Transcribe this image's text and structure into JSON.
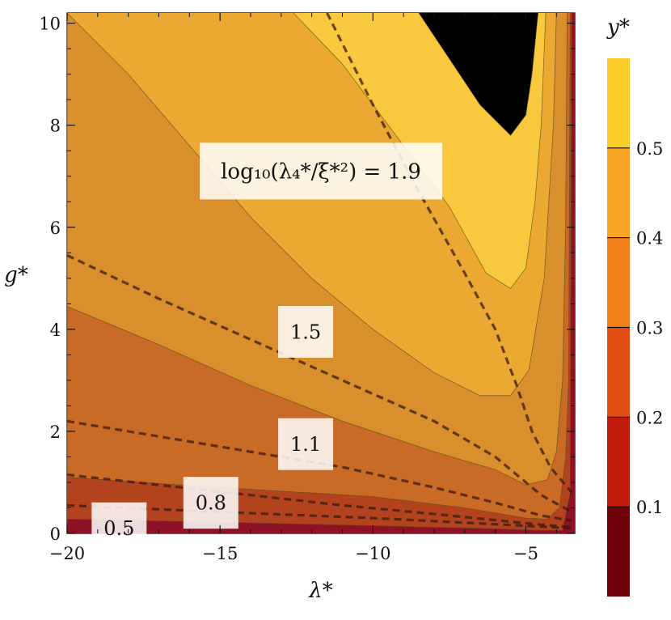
{
  "chart_data": {
    "type": "contour",
    "xlabel": "λ*",
    "ylabel": "g*",
    "xlim": [
      -20,
      -3.4
    ],
    "ylim": [
      0,
      10.2
    ],
    "x_ticks": [
      -20,
      -15,
      -10,
      -5
    ],
    "x_tick_labels": [
      "−20",
      "−15",
      "−10",
      "−5"
    ],
    "y_ticks": [
      0,
      2,
      4,
      6,
      8,
      10
    ],
    "y_tick_labels": [
      "0",
      "2",
      "4",
      "6",
      "8",
      "10"
    ],
    "grid": false,
    "colorbar": {
      "title": "y*",
      "levels": [
        0.1,
        0.2,
        0.3,
        0.4,
        0.5
      ],
      "tick_labels": [
        "0.1",
        "0.2",
        "0.3",
        "0.4",
        "0.5"
      ],
      "colors": [
        "#6e0008",
        "#c01a0a",
        "#e24e12",
        "#f2801a",
        "#f9a523",
        "#fbcd29"
      ]
    },
    "band_colors": [
      "#8e1126",
      "#b3431f",
      "#c96a26",
      "#d98f2c",
      "#eba933",
      "#f8c93e"
    ],
    "filled_contours": [
      {
        "level": 0.1,
        "points": [
          [
            -20,
            0.28
          ],
          [
            -15,
            0.22
          ],
          [
            -10,
            0.15
          ],
          [
            -6,
            0.09
          ],
          [
            -4.5,
            0.06
          ],
          [
            -3.8,
            0.06
          ],
          [
            -3.55,
            0.8
          ],
          [
            -3.5,
            10.2
          ]
        ]
      },
      {
        "level": 0.2,
        "points": [
          [
            -20,
            1.1
          ],
          [
            -15,
            0.9
          ],
          [
            -10,
            0.72
          ],
          [
            -7,
            0.5
          ],
          [
            -5,
            0.3
          ],
          [
            -4.3,
            0.28
          ],
          [
            -3.9,
            0.5
          ],
          [
            -3.7,
            1.5
          ],
          [
            -3.6,
            3
          ],
          [
            -3.55,
            10.2
          ]
        ]
      },
      {
        "level": 0.3,
        "points": [
          [
            -20,
            4.45
          ],
          [
            -17,
            3.7
          ],
          [
            -14,
            2.9
          ],
          [
            -11,
            2.2
          ],
          [
            -8,
            1.6
          ],
          [
            -6,
            1.25
          ],
          [
            -5,
            0.95
          ],
          [
            -4.3,
            1.05
          ],
          [
            -4.0,
            1.6
          ],
          [
            -3.8,
            3
          ],
          [
            -3.7,
            6
          ],
          [
            -3.65,
            10.2
          ]
        ]
      },
      {
        "level": 0.4,
        "points": [
          [
            -20,
            10.2
          ],
          [
            -18,
            9.0
          ],
          [
            -16,
            7.6
          ],
          [
            -14,
            6.2
          ],
          [
            -12,
            5.0
          ],
          [
            -10,
            4.0
          ],
          [
            -8,
            3.15
          ],
          [
            -6.5,
            2.7
          ],
          [
            -5.5,
            2.7
          ],
          [
            -4.9,
            3.2
          ],
          [
            -4.4,
            5
          ],
          [
            -4.1,
            8
          ],
          [
            -4.0,
            10.2
          ]
        ]
      },
      {
        "level": 0.5,
        "points": [
          [
            -12.6,
            10.2
          ],
          [
            -11,
            9.2
          ],
          [
            -9,
            7.6
          ],
          [
            -7.5,
            6.4
          ],
          [
            -6.3,
            5.1
          ],
          [
            -5.5,
            4.8
          ],
          [
            -5.0,
            5.2
          ],
          [
            -4.7,
            6.5
          ],
          [
            -4.5,
            8
          ],
          [
            -4.35,
            10.2
          ]
        ]
      },
      {
        "level": 0.6,
        "points": [
          [
            -8.5,
            10.2
          ],
          [
            -7.5,
            9.3
          ],
          [
            -6.5,
            8.4
          ],
          [
            -5.5,
            7.8
          ],
          [
            -5.0,
            8.2
          ],
          [
            -4.8,
            9.0
          ],
          [
            -4.6,
            10.2
          ]
        ]
      }
    ],
    "dashed_contours": [
      {
        "label": "log₁₀(λ₄*/ξ*²) = 1.9",
        "points": [
          [
            -11.5,
            10.2
          ],
          [
            -10,
            8.4
          ],
          [
            -8.5,
            6.7
          ],
          [
            -7,
            5.1
          ],
          [
            -6,
            4.0
          ],
          [
            -5.3,
            2.9
          ],
          [
            -4.8,
            2.0
          ],
          [
            -4.2,
            1.3
          ],
          [
            -3.5,
            0.8
          ]
        ]
      },
      {
        "label": "1.5",
        "points": [
          [
            -20,
            5.45
          ],
          [
            -17,
            4.6
          ],
          [
            -14,
            3.8
          ],
          [
            -11,
            3.0
          ],
          [
            -8,
            2.2
          ],
          [
            -6,
            1.5
          ],
          [
            -4.5,
            0.75
          ],
          [
            -3.5,
            0.42
          ]
        ]
      },
      {
        "label": "1.1",
        "points": [
          [
            -20,
            2.2
          ],
          [
            -17,
            1.9
          ],
          [
            -14,
            1.6
          ],
          [
            -11,
            1.3
          ],
          [
            -8,
            0.9
          ],
          [
            -6,
            0.6
          ],
          [
            -4.5,
            0.35
          ],
          [
            -3.5,
            0.25
          ]
        ]
      },
      {
        "label": "0.8",
        "points": [
          [
            -20,
            1.15
          ],
          [
            -17,
            0.95
          ],
          [
            -14,
            0.75
          ],
          [
            -11,
            0.55
          ],
          [
            -8,
            0.38
          ],
          [
            -5,
            0.2
          ],
          [
            -3.5,
            0.12
          ]
        ]
      },
      {
        "label": "0.5",
        "points": [
          [
            -20,
            0.55
          ],
          [
            -15,
            0.42
          ],
          [
            -10,
            0.3
          ],
          [
            -6,
            0.18
          ],
          [
            -3.5,
            0.1
          ]
        ]
      }
    ],
    "contour_labels": [
      {
        "text": "log₁₀(λ₄*/ξ*²) = 1.9",
        "x": -11.7,
        "y": 7.1
      },
      {
        "text": "1.5",
        "x": -12.2,
        "y": 3.95
      },
      {
        "text": "1.1",
        "x": -12.2,
        "y": 1.75
      },
      {
        "text": "0.8",
        "x": -15.3,
        "y": 0.6
      },
      {
        "text": "0.5",
        "x": -18.3,
        "y": 0.1
      }
    ]
  }
}
